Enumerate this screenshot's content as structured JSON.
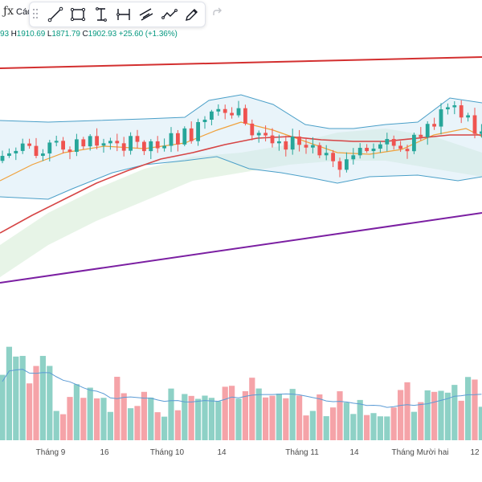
{
  "topbar": {
    "fx_label": "ƒx",
    "label": "Các"
  },
  "toolbar": {
    "tools": [
      {
        "name": "trend-line-icon"
      },
      {
        "name": "rectangle-icon"
      },
      {
        "name": "text-cursor-icon"
      },
      {
        "name": "date-range-icon"
      },
      {
        "name": "parallel-channel-icon"
      },
      {
        "name": "zigzag-icon"
      },
      {
        "name": "pen-brush-icon"
      }
    ],
    "redo": "redo-icon"
  },
  "ohlc": {
    "open_tail": "93",
    "high_key": "H",
    "high": "1910.69",
    "low_key": "L",
    "low": "1871.79",
    "close_key": "C",
    "close": "1902.93",
    "change": "+25.60 (+1.36%)"
  },
  "xaxis": {
    "labels": [
      "Tháng 9",
      "16",
      "Tháng 10",
      "14",
      "Tháng 11",
      "14",
      "Tháng Mười hai",
      "12"
    ]
  },
  "colors": {
    "up": "#26a69a",
    "down": "#ef5350",
    "volume_up": "#8ed1c6",
    "volume_down": "#f5a3a8",
    "resistance": "#d32f2f",
    "support": "#7b1fa2",
    "ma_slow": "#d64545",
    "ma_fast": "#f0a13b",
    "bollinger": "#4a9fc8",
    "cloud": "#c9e6c9"
  },
  "chart_data": {
    "type": "candlestick",
    "x_labels": [
      "Tháng 9",
      "16",
      "Tháng 10",
      "14",
      "Tháng 11",
      "14",
      "Tháng Mười hai",
      "12"
    ],
    "last_bar": {
      "high": 1910.69,
      "low": 1871.79,
      "close": 1902.93,
      "change": 25.6,
      "change_pct": 1.36
    },
    "overlays": [
      "bollinger-bands",
      "moving-average-fast",
      "moving-average-slow",
      "cloud",
      "resistance-trendline",
      "support-trendline"
    ],
    "volume_shown": true,
    "grid": false
  }
}
